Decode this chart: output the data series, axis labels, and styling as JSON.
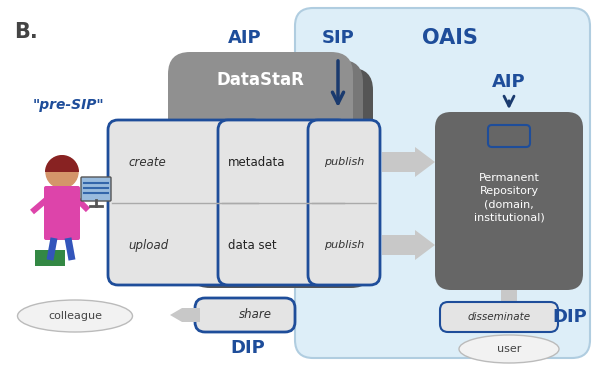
{
  "title": "B.",
  "oais_label": "OAIS",
  "presip_label": "\"pre-SIP\"",
  "aip_label_left": "AIP",
  "aip_label_right": "AIP",
  "sip_label": "SIP",
  "dip_label_left": "DIP",
  "dip_label_right": "DIP",
  "datastar_label": "DataStaR",
  "metadata_label": "metadata",
  "dataset_label": "data set",
  "create_label": "create",
  "upload_label": "upload",
  "publish_label1": "publish",
  "publish_label2": "publish",
  "share_label": "share",
  "disseminate_label": "disseminate",
  "colleague_label": "colleague",
  "user_label": "user",
  "repo_label": "Permanent\nRepository\n(domain,\ninstitutional)",
  "bg_color": "#ffffff",
  "oais_bg": "#ddeef8",
  "blue_dark": "#1a3a6e",
  "blue_mid": "#1e4d9a",
  "box_stroke": "#1e4d9a",
  "datastar_back_color": "#555555",
  "datastar_mid_color": "#777777",
  "datastar_front_color": "#909090",
  "repo_color": "#666666",
  "arrow_color": "#bbbbbb",
  "box_fill_light": "#e4e4e4",
  "box_fill_mid": "#cccccc"
}
